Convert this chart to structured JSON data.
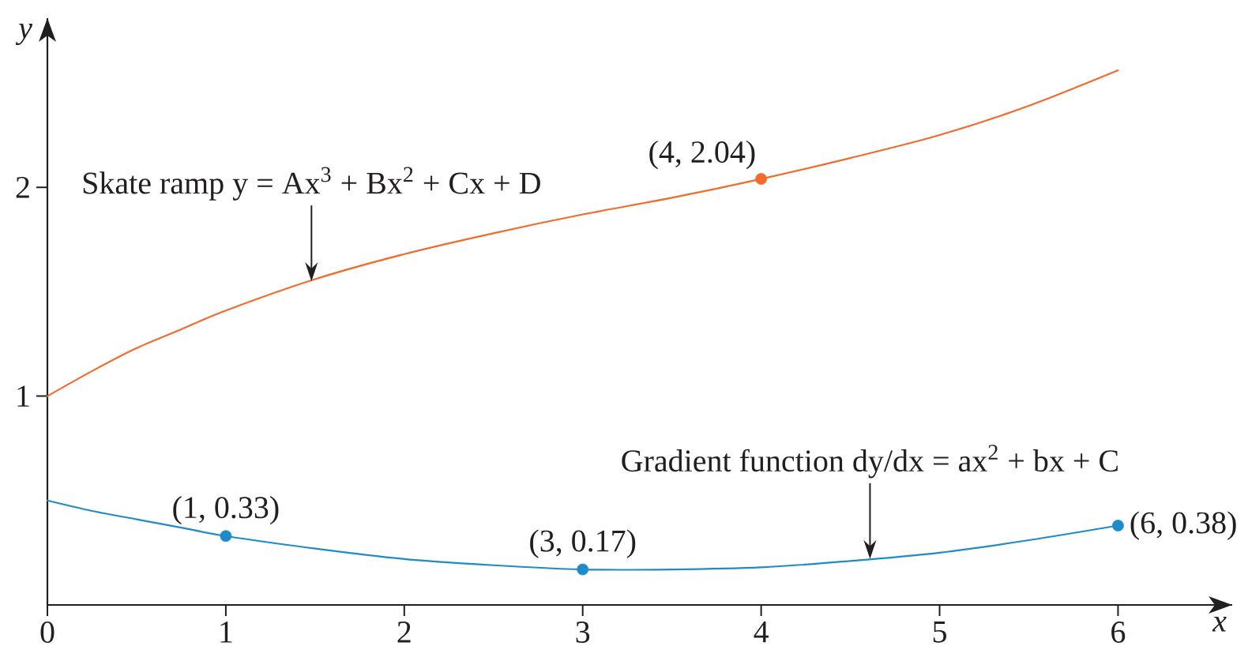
{
  "chart_data": {
    "type": "line",
    "xlabel": "x",
    "ylabel": "y",
    "x": [
      0,
      0.25,
      0.5,
      0.75,
      1,
      1.5,
      2,
      2.5,
      3,
      3.5,
      4,
      4.5,
      5,
      5.5,
      6
    ],
    "series": [
      {
        "color": "#f26b2d",
        "values": [
          1.0,
          1.12,
          1.23,
          1.32,
          1.41,
          1.56,
          1.68,
          1.78,
          1.87,
          1.95,
          2.04,
          2.14,
          2.25,
          2.39,
          2.56
        ]
      },
      {
        "color": "#1f8bc9",
        "values": [
          0.5,
          0.45,
          0.41,
          0.37,
          0.33,
          0.27,
          0.22,
          0.19,
          0.17,
          0.17,
          0.18,
          0.21,
          0.25,
          0.31,
          0.38
        ]
      },
      {
        "type": "scatter",
        "marker": "circle",
        "color": "#f26b2d",
        "x": [
          4
        ],
        "values": [
          2.04
        ],
        "value_labels": [
          "(4, 2.04)"
        ]
      },
      {
        "type": "scatter",
        "marker": "circle",
        "color": "#1f8bc9",
        "x": [
          1,
          3,
          6
        ],
        "values": [
          0.33,
          0.17,
          0.38
        ],
        "value_labels": [
          "(1, 0.33)",
          "(3, 0.17)",
          "(6, 0.38)"
        ]
      }
    ],
    "xlim": [
      0,
      6.64
    ],
    "ylim": [
      0,
      2.81
    ],
    "xticks": [
      0,
      1,
      2,
      3,
      4,
      5,
      6
    ],
    "yticks": [
      1,
      2
    ],
    "annotations": [
      {
        "text": "Skate ramp y = Ax$^{3}$ + Bx$^{2}$ + Cx + D",
        "x": 1.48,
        "y": 1.55
      },
      {
        "text": "Gradient function dy/dx = ax$^{2}$ + bx + C",
        "x": 4.61,
        "y": 0.22
      }
    ]
  }
}
